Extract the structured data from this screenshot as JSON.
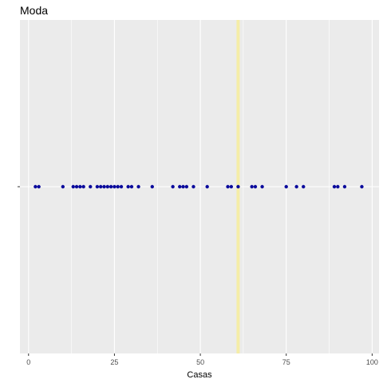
{
  "chart_data": {
    "type": "scatter",
    "title": "Moda",
    "xlabel": "Casas",
    "ylabel": "",
    "xlim": [
      -2.5,
      102
    ],
    "x_ticks": [
      0,
      25,
      50,
      75,
      100
    ],
    "x_tick_labels": [
      "0",
      "25",
      "50",
      "75",
      "100"
    ],
    "y_tick_labels": [
      ""
    ],
    "grid": true,
    "mode_value": 61,
    "mode_line_color": "#f5eda7",
    "point_color": "#0a0a9c",
    "panel_color": "#ebebeb",
    "grid_color": "#ffffff",
    "series": [
      {
        "name": "Casas",
        "x": [
          2,
          3,
          10,
          13,
          14,
          15,
          16,
          18,
          20,
          21,
          22,
          23,
          24,
          25,
          26,
          27,
          29,
          30,
          32,
          36,
          42,
          44,
          45,
          46,
          48,
          52,
          58,
          59,
          61,
          65,
          66,
          68,
          75,
          78,
          80,
          89,
          90,
          92,
          97
        ]
      }
    ]
  }
}
